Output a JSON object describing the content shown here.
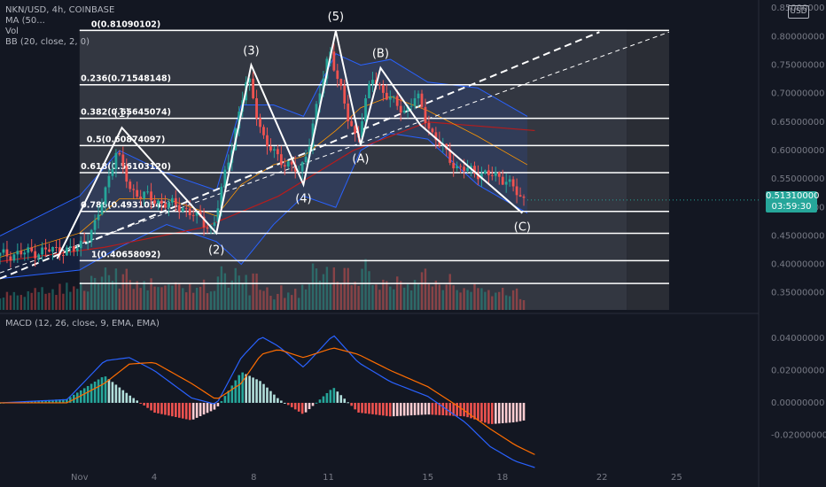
{
  "header": {
    "symbol_line": "NKN/USD, 4h, COINBASE",
    "ma_line": "MA (50...",
    "vol_line": "Vol",
    "bb_line": "BB (20, close, 2, 0)",
    "macd_line": "MACD (12, 26, close, 9, EMA, EMA)",
    "currency_button": "USD"
  },
  "price_tag": {
    "price": "0.51310000",
    "countdown": "03:59:30",
    "color": "#26a69a"
  },
  "chart_data": {
    "type": "candlestick",
    "title": "NKN/USD, 4h, COINBASE",
    "y_axis_ticks": [
      "0.85000000",
      "0.80000000",
      "0.75000000",
      "0.70000000",
      "0.65000000",
      "0.60000000",
      "0.55000000",
      "0.50000000",
      "0.45000000",
      "0.40000000",
      "0.35000000"
    ],
    "y_axis_values": [
      0.85,
      0.8,
      0.75,
      0.7,
      0.65,
      0.6,
      0.55,
      0.5,
      0.45,
      0.4,
      0.35
    ],
    "ylim": [
      0.32,
      0.855
    ],
    "macd_ticks": [
      "0.04000000",
      "0.02000000",
      "0.00000000",
      "-0.02000000"
    ],
    "macd_tick_values": [
      0.04,
      0.02,
      0.0,
      -0.02
    ],
    "macd_ylim": [
      -0.04,
      0.052
    ],
    "x_axis_ticks": [
      "Nov",
      "4",
      "8",
      "11",
      "15",
      "18",
      "22",
      "25"
    ],
    "x_axis_days": [
      1,
      4,
      8,
      11,
      15,
      18,
      22,
      25
    ],
    "xlim_days": [
      -2.2,
      28.3
    ],
    "last_price": 0.5131,
    "fib_levels": [
      {
        "label": "0(0.81090102)",
        "value": 0.8109
      },
      {
        "label": "0.236(0.71548148)",
        "value": 0.7155
      },
      {
        "label": "0.382(0.65645074)",
        "value": 0.6565
      },
      {
        "label": "0.5(0.60874097)",
        "value": 0.6087
      },
      {
        "label": "0.618(0.56103120)",
        "value": 0.561
      },
      {
        "label": "0.786(0.49310542)",
        "value": 0.4931
      },
      {
        "label": "",
        "value": 0.4545
      },
      {
        "label": "1(0.40658092)",
        "value": 0.4066
      },
      {
        "label": "",
        "value": 0.3664
      }
    ],
    "wave_labels": [
      {
        "label": "(1)",
        "day": 2.7,
        "price": 0.64
      },
      {
        "label": "(2)",
        "day": 6.5,
        "price": 0.45
      },
      {
        "label": "(3)",
        "day": 7.9,
        "price": 0.75
      },
      {
        "label": "(4)",
        "day": 10.0,
        "price": 0.54
      },
      {
        "label": "(5)",
        "day": 11.3,
        "price": 0.81
      },
      {
        "label": "(A)",
        "day": 12.3,
        "price": 0.61
      },
      {
        "label": "(B)",
        "day": 13.1,
        "price": 0.745
      },
      {
        "label": "(C)",
        "day": 18.8,
        "price": 0.49
      }
    ],
    "wave_path": [
      {
        "day": 0.1,
        "price": 0.41
      },
      {
        "day": 2.7,
        "price": 0.64
      },
      {
        "day": 6.5,
        "price": 0.455
      },
      {
        "day": 7.9,
        "price": 0.75
      },
      {
        "day": 10.0,
        "price": 0.54
      },
      {
        "day": 11.3,
        "price": 0.81
      },
      {
        "day": 12.3,
        "price": 0.61
      },
      {
        "day": 13.1,
        "price": 0.745
      },
      {
        "day": 14.7,
        "price": 0.645
      },
      {
        "day": 18.8,
        "price": 0.49
      }
    ],
    "trendlines": [
      {
        "from": {
          "day": -2.2,
          "price": 0.375
        },
        "to": {
          "day": 21.9,
          "price": 0.808
        }
      },
      {
        "from": {
          "day": -2.2,
          "price": 0.385
        },
        "to": {
          "day": 24.7,
          "price": 0.808
        }
      }
    ],
    "ma_anchors": [
      {
        "day": -2.2,
        "price": 0.405
      },
      {
        "day": 2,
        "price": 0.43
      },
      {
        "day": 6,
        "price": 0.465
      },
      {
        "day": 9,
        "price": 0.52
      },
      {
        "day": 12,
        "price": 0.6
      },
      {
        "day": 15,
        "price": 0.65
      },
      {
        "day": 19.3,
        "price": 0.635
      }
    ],
    "bb_upper": [
      {
        "day": -2.2,
        "price": 0.45
      },
      {
        "day": 1,
        "price": 0.52
      },
      {
        "day": 2.6,
        "price": 0.6
      },
      {
        "day": 4.5,
        "price": 0.56
      },
      {
        "day": 6.5,
        "price": 0.53
      },
      {
        "day": 7.5,
        "price": 0.68
      },
      {
        "day": 8.8,
        "price": 0.68
      },
      {
        "day": 10,
        "price": 0.66
      },
      {
        "day": 11.3,
        "price": 0.77
      },
      {
        "day": 12.3,
        "price": 0.75
      },
      {
        "day": 13.5,
        "price": 0.76
      },
      {
        "day": 15,
        "price": 0.72
      },
      {
        "day": 17,
        "price": 0.71
      },
      {
        "day": 19,
        "price": 0.66
      }
    ],
    "bb_lower": [
      {
        "day": -2.2,
        "price": 0.375
      },
      {
        "day": 1,
        "price": 0.39
      },
      {
        "day": 2.6,
        "price": 0.43
      },
      {
        "day": 4.5,
        "price": 0.47
      },
      {
        "day": 6.5,
        "price": 0.44
      },
      {
        "day": 7.5,
        "price": 0.4
      },
      {
        "day": 8.8,
        "price": 0.47
      },
      {
        "day": 10,
        "price": 0.52
      },
      {
        "day": 11.3,
        "price": 0.5
      },
      {
        "day": 12.3,
        "price": 0.6
      },
      {
        "day": 13.5,
        "price": 0.63
      },
      {
        "day": 15,
        "price": 0.62
      },
      {
        "day": 17,
        "price": 0.54
      },
      {
        "day": 19,
        "price": 0.49
      }
    ],
    "anchor_days": [
      -2.2,
      0,
      1,
      1.8,
      2.6,
      3.2,
      4.3,
      5.3,
      6.5,
      7.0,
      7.9,
      8.6,
      9.5,
      10.0,
      10.4,
      11.2,
      11.9,
      12.3,
      12.9,
      13.6,
      14.2,
      14.7,
      15.3,
      16.3,
      17.3,
      18.3,
      18.9
    ],
    "anchor_prices": [
      0.415,
      0.425,
      0.425,
      0.47,
      0.6,
      0.53,
      0.51,
      0.5,
      0.462,
      0.56,
      0.73,
      0.61,
      0.575,
      0.56,
      0.62,
      0.78,
      0.66,
      0.62,
      0.73,
      0.69,
      0.67,
      0.695,
      0.63,
      0.57,
      0.56,
      0.55,
      0.513
    ],
    "macd_anchor_days": [
      -2.2,
      0.5,
      2.0,
      3.0,
      4.0,
      5.5,
      6.5,
      7.5,
      8.3,
      9.0,
      10.0,
      11.2,
      12.2,
      13.5,
      15.0,
      16.5,
      17.5,
      18.5,
      19.3
    ],
    "macd_line": [
      0.0,
      0.002,
      0.026,
      0.028,
      0.02,
      0.003,
      -0.001,
      0.028,
      0.041,
      0.035,
      0.022,
      0.042,
      0.025,
      0.013,
      0.004,
      -0.012,
      -0.027,
      -0.036,
      -0.04
    ],
    "signal_line": [
      0.0,
      0.0,
      0.012,
      0.024,
      0.025,
      0.012,
      0.002,
      0.012,
      0.03,
      0.033,
      0.028,
      0.034,
      0.03,
      0.02,
      0.01,
      -0.005,
      -0.016,
      -0.026,
      -0.032
    ],
    "up_color": "#26a69a",
    "down_color": "#ef5350"
  }
}
